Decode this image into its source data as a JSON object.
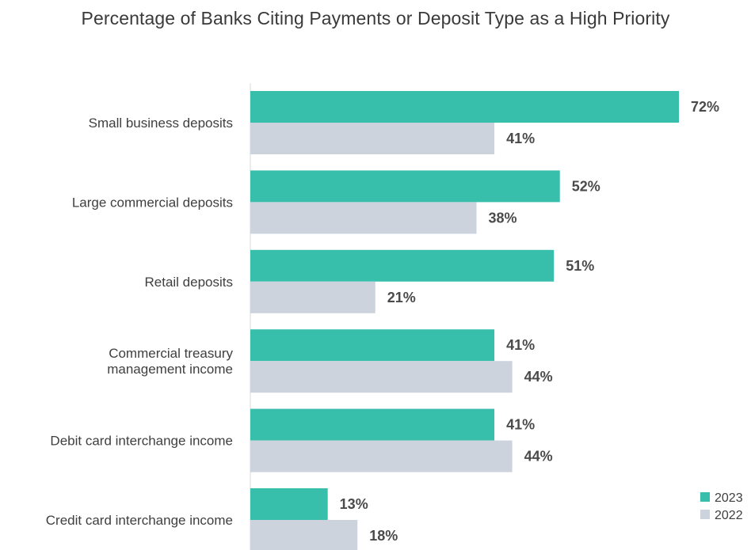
{
  "chart_data": {
    "type": "bar",
    "orientation": "horizontal",
    "title": "Percentage of Banks Citing Payments or Deposit Type as a High Priority",
    "categories": [
      [
        "Small business deposits"
      ],
      [
        "Large commercial deposits"
      ],
      [
        "Retail deposits"
      ],
      [
        "Commercial treasury",
        "management income"
      ],
      [
        "Debit card interchange income"
      ],
      [
        "Credit card interchange income"
      ]
    ],
    "series": [
      {
        "name": "2023",
        "color": "#38bfac",
        "values": [
          72,
          52,
          51,
          41,
          41,
          13
        ]
      },
      {
        "name": "2022",
        "color": "#cdd3dd",
        "values": [
          41,
          38,
          21,
          44,
          44,
          18
        ]
      }
    ],
    "value_suffix": "%",
    "xlim": [
      0,
      72
    ],
    "grid": false,
    "legend_position": "bottom-right"
  }
}
